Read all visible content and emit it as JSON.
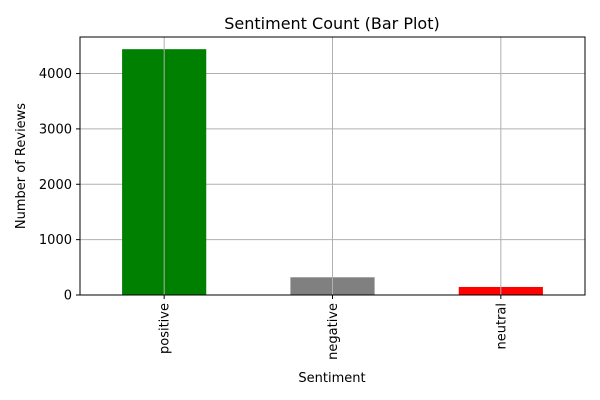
{
  "chart_data": {
    "type": "bar",
    "title": "Sentiment Count (Bar Plot)",
    "xlabel": "Sentiment",
    "ylabel": "Number of Reviews",
    "categories": [
      "positive",
      "negative",
      "neutral"
    ],
    "values": [
      4440,
      320,
      145
    ],
    "colors": [
      "#008000",
      "#808080",
      "#ff0000"
    ],
    "ylim": [
      0,
      4660
    ],
    "yticks": [
      0,
      1000,
      2000,
      3000,
      4000
    ],
    "grid": true,
    "legend": "none"
  }
}
